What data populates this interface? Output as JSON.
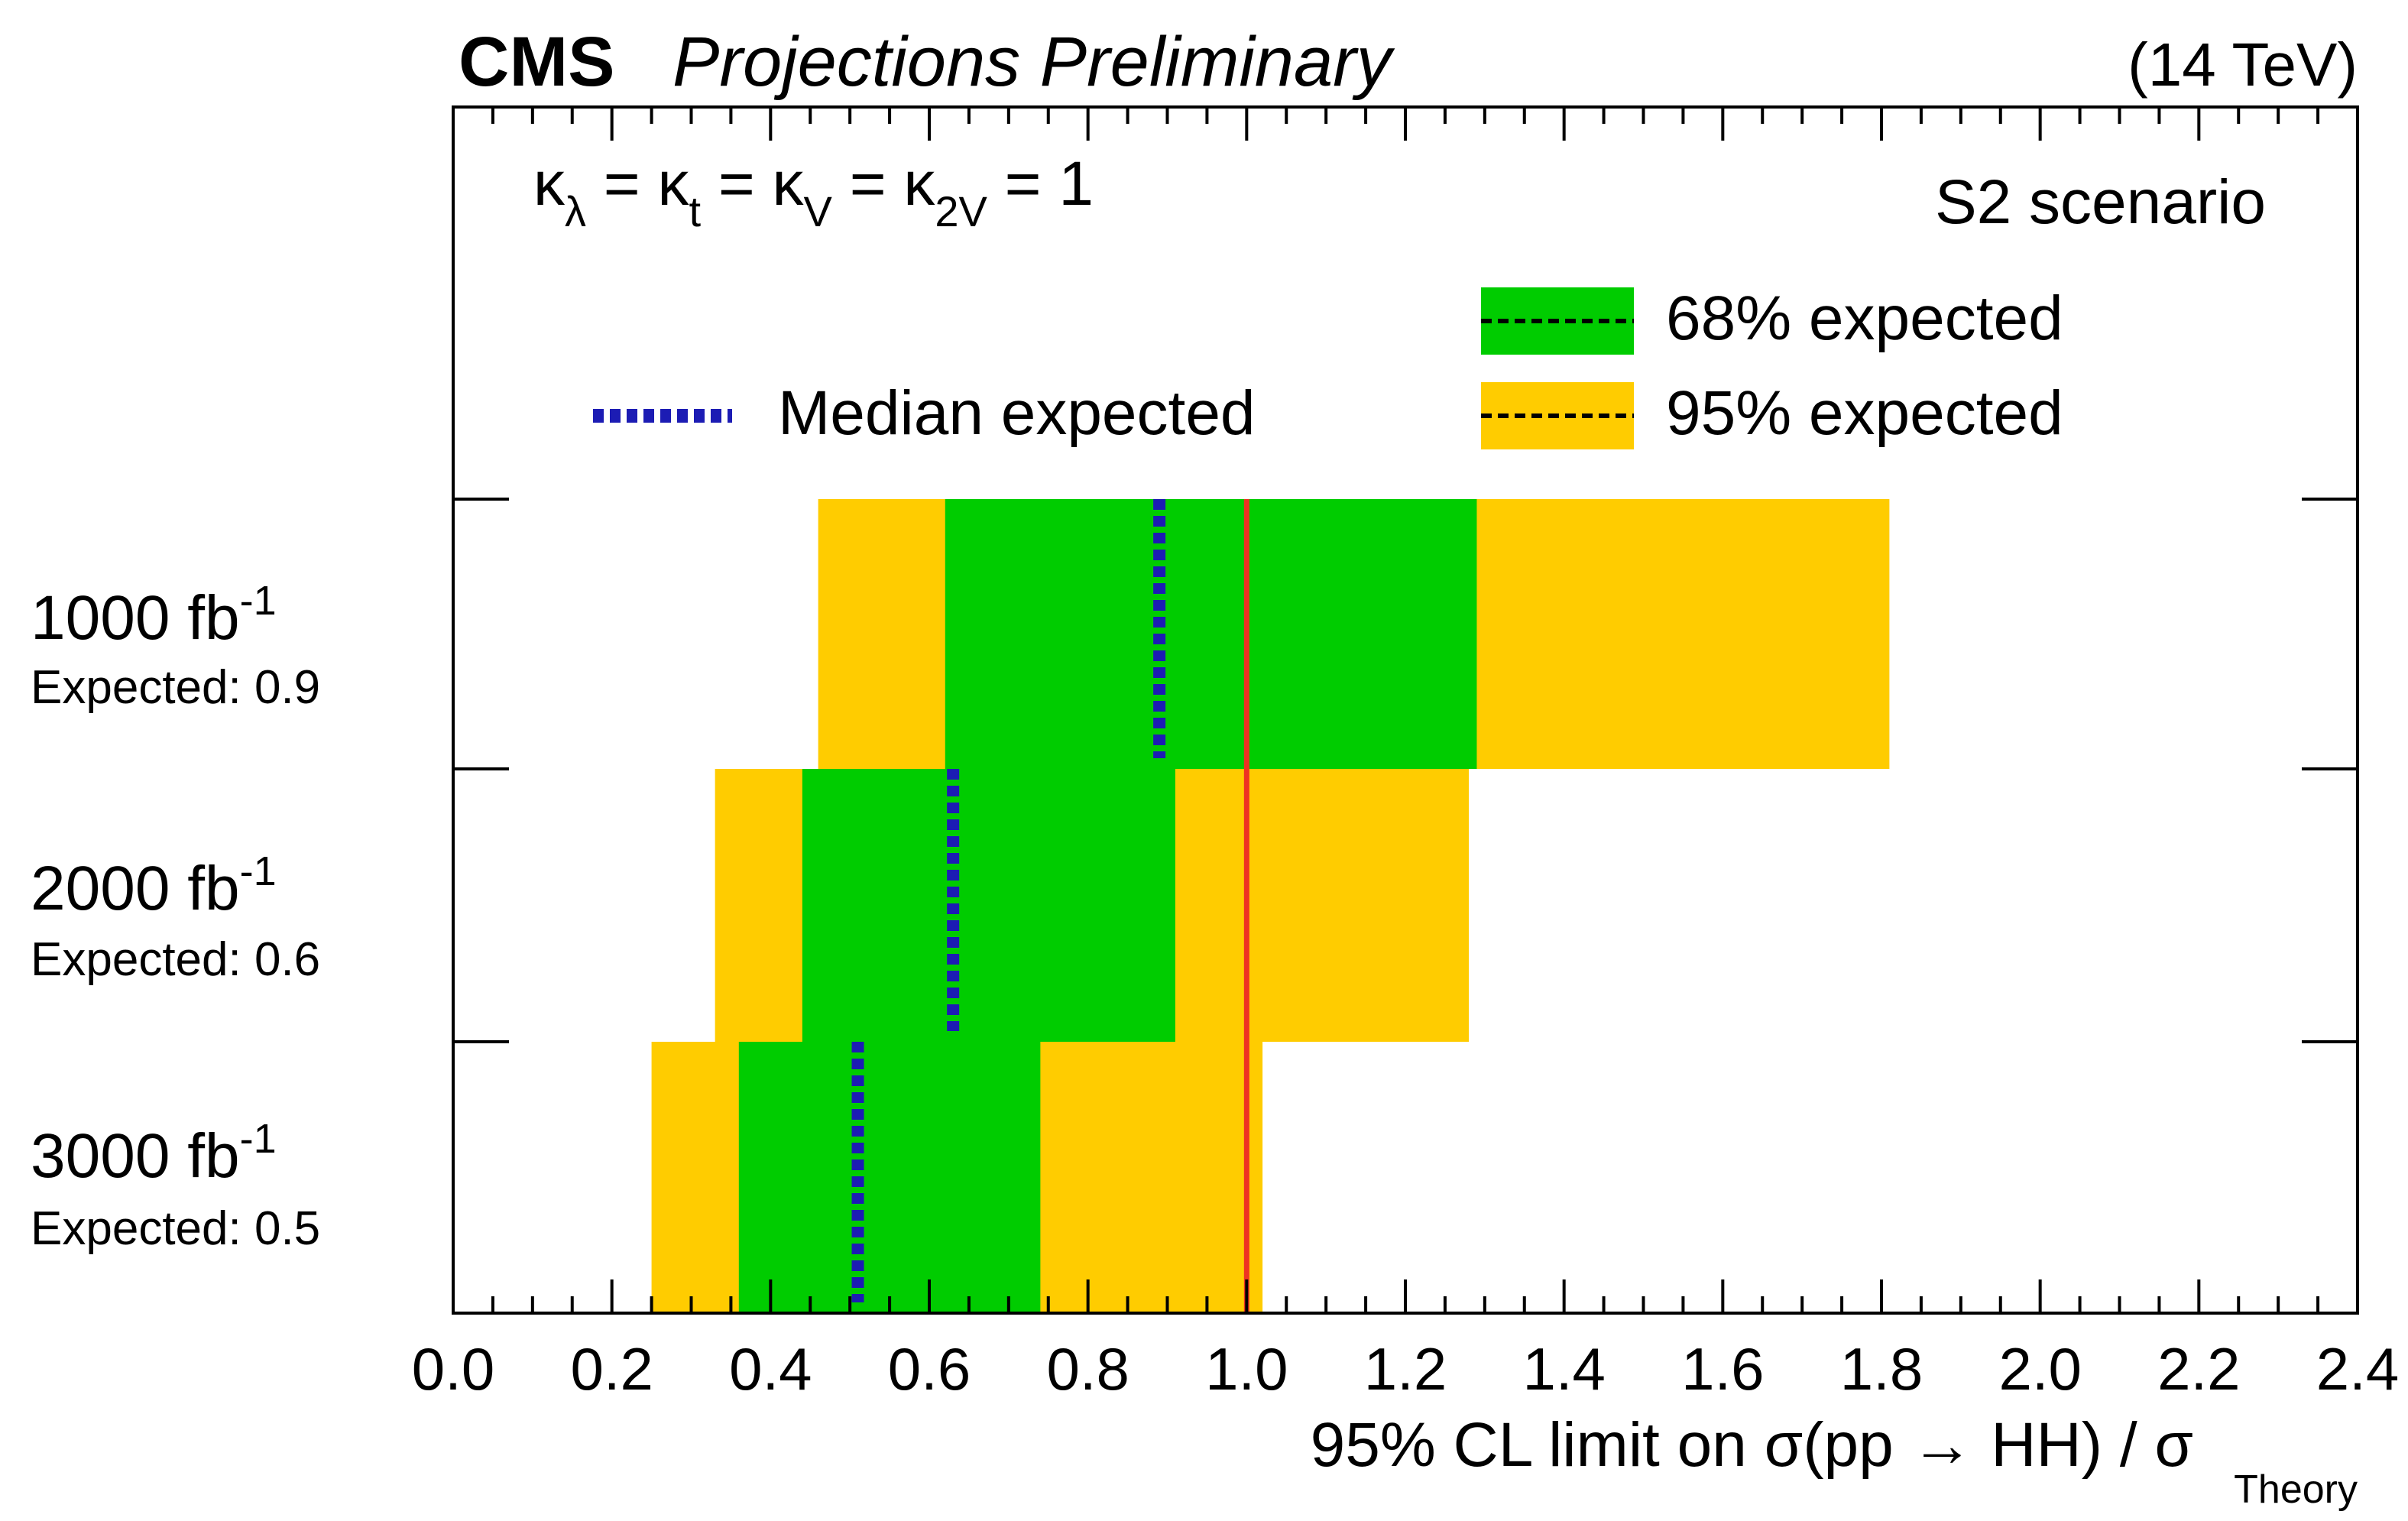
{
  "header": {
    "experiment": "CMS",
    "subtitle": "Projections Preliminary",
    "energy": "(14 TeV)"
  },
  "chart_data": {
    "type": "bar",
    "orientation": "horizontal",
    "title": "CMS Projections Preliminary (14 TeV)",
    "annotation": {
      "kappa_main": "κ",
      "kappa_sub": [
        "λ",
        "t",
        "V",
        "2V"
      ],
      "kappa_eq": "=",
      "kappa_value": "1"
    },
    "scenario": "S2 scenario",
    "legend": {
      "median": "Median expected",
      "band68": "68% expected",
      "band95": "95% expected"
    },
    "xlabel_main": "95% CL limit on σ(pp → HH) / σ",
    "xlabel_sub": "Theory",
    "xlim": [
      0.0,
      2.4
    ],
    "x_ticks": [
      "0.0",
      "0.2",
      "0.4",
      "0.6",
      "0.8",
      "1.0",
      "1.2",
      "1.4",
      "1.6",
      "1.8",
      "2.0",
      "2.2",
      "2.4"
    ],
    "reference_line": 1.0,
    "categories": [
      {
        "lumi": "1000 fb",
        "exp": "-1",
        "expected_label": "Expected: 0.9",
        "median": 0.89,
        "band68": [
          0.62,
          1.29
        ],
        "band95": [
          0.46,
          1.81
        ]
      },
      {
        "lumi": "2000 fb",
        "exp": "-1",
        "expected_label": "Expected: 0.6",
        "median": 0.63,
        "band68": [
          0.44,
          0.91
        ],
        "band95": [
          0.33,
          1.28
        ]
      },
      {
        "lumi": "3000 fb",
        "exp": "-1",
        "expected_label": "Expected: 0.5",
        "median": 0.51,
        "band68": [
          0.36,
          0.74
        ],
        "band95": [
          0.25,
          1.02
        ]
      }
    ],
    "colors": {
      "band68": "#00cc00",
      "band95": "#ffcc00",
      "median": "#1c1cb4",
      "reference": "#ee3322"
    }
  }
}
